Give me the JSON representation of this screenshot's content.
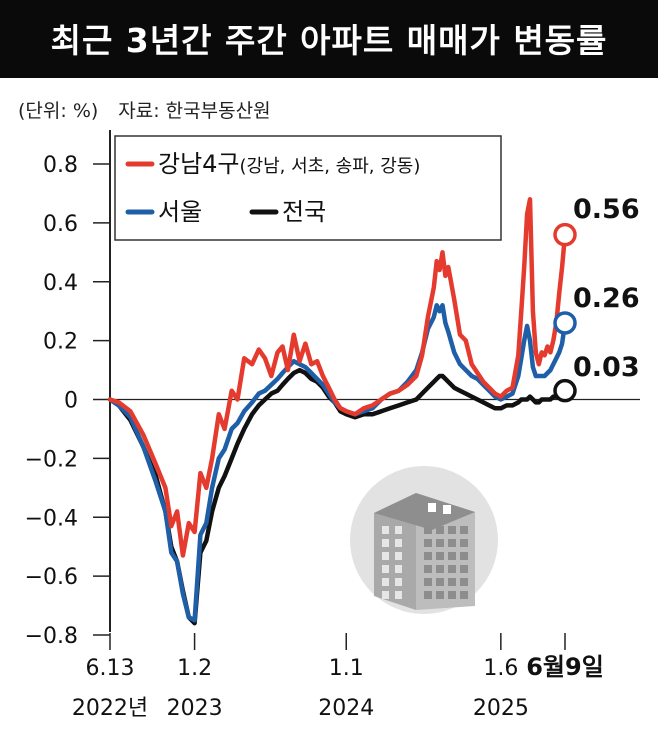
{
  "title": "최근 3년간 주간 아파트 매매가 변동률",
  "unit_label": "(단위: %)",
  "source_label": "자료: 한국부동산원",
  "colors": {
    "gangnam": "#e43b2e",
    "seoul": "#1f5fa8",
    "national": "#111111"
  },
  "chart_data": {
    "type": "line",
    "title": "최근 3년간 주간 아파트 매매가 변동률",
    "ylabel": "(단위: %)",
    "ylim": [
      -0.8,
      0.8
    ],
    "yticks": [
      0.8,
      0.6,
      0.4,
      0.2,
      0,
      -0.2,
      -0.4,
      -0.6,
      -0.8
    ],
    "ytick_labels": [
      "0.8",
      "0.6",
      "0.4",
      "0.2",
      "0",
      "−0.2",
      "−0.4",
      "−0.6",
      "−0.8"
    ],
    "xlim": [
      "2022-06-13",
      "2025-06-09"
    ],
    "xticks": [
      {
        "date": "2022-06-13",
        "label": "6.13",
        "year": "2022년"
      },
      {
        "date": "2023-01-02",
        "label": "1.2",
        "year": "2023"
      },
      {
        "date": "2024-01-01",
        "label": "1.1",
        "year": "2024"
      },
      {
        "date": "2025-01-06",
        "label": "1.6",
        "year": "2025"
      },
      {
        "date": "2025-06-09",
        "label": "6월9일",
        "year": ""
      }
    ],
    "legend_position": "top-left",
    "series": [
      {
        "key": "gangnam",
        "name": "강남4구",
        "name_suffix": "(강남, 서초, 송파, 강동)",
        "end_label": "0.56",
        "points": [
          [
            "2022-06-13",
            0.0
          ],
          [
            "2022-07-04",
            -0.01
          ],
          [
            "2022-08-01",
            -0.04
          ],
          [
            "2022-09-01",
            -0.12
          ],
          [
            "2022-10-01",
            -0.22
          ],
          [
            "2022-10-24",
            -0.3
          ],
          [
            "2022-11-07",
            -0.43
          ],
          [
            "2022-11-21",
            -0.38
          ],
          [
            "2022-12-05",
            -0.53
          ],
          [
            "2022-12-19",
            -0.42
          ],
          [
            "2023-01-02",
            -0.45
          ],
          [
            "2023-01-16",
            -0.25
          ],
          [
            "2023-01-30",
            -0.3
          ],
          [
            "2023-02-13",
            -0.2
          ],
          [
            "2023-03-01",
            -0.05
          ],
          [
            "2023-03-15",
            -0.1
          ],
          [
            "2023-04-01",
            0.03
          ],
          [
            "2023-04-15",
            0.0
          ],
          [
            "2023-05-01",
            0.14
          ],
          [
            "2023-05-20",
            0.12
          ],
          [
            "2023-06-05",
            0.17
          ],
          [
            "2023-06-20",
            0.14
          ],
          [
            "2023-07-05",
            0.08
          ],
          [
            "2023-07-20",
            0.16
          ],
          [
            "2023-08-01",
            0.18
          ],
          [
            "2023-08-14",
            0.1
          ],
          [
            "2023-08-28",
            0.22
          ],
          [
            "2023-09-11",
            0.13
          ],
          [
            "2023-09-25",
            0.19
          ],
          [
            "2023-10-09",
            0.12
          ],
          [
            "2023-10-23",
            0.13
          ],
          [
            "2023-11-06",
            0.08
          ],
          [
            "2023-11-20",
            0.04
          ],
          [
            "2023-12-04",
            0.0
          ],
          [
            "2023-12-18",
            -0.03
          ],
          [
            "2024-01-01",
            -0.04
          ],
          [
            "2024-01-22",
            -0.05
          ],
          [
            "2024-02-12",
            -0.03
          ],
          [
            "2024-03-04",
            -0.02
          ],
          [
            "2024-03-25",
            0.0
          ],
          [
            "2024-04-15",
            0.02
          ],
          [
            "2024-05-06",
            0.03
          ],
          [
            "2024-05-27",
            0.05
          ],
          [
            "2024-06-17",
            0.08
          ],
          [
            "2024-07-01",
            0.15
          ],
          [
            "2024-07-15",
            0.28
          ],
          [
            "2024-07-29",
            0.38
          ],
          [
            "2024-08-05",
            0.47
          ],
          [
            "2024-08-12",
            0.44
          ],
          [
            "2024-08-19",
            0.5
          ],
          [
            "2024-08-26",
            0.42
          ],
          [
            "2024-09-02",
            0.45
          ],
          [
            "2024-09-16",
            0.34
          ],
          [
            "2024-09-30",
            0.22
          ],
          [
            "2024-10-14",
            0.2
          ],
          [
            "2024-10-28",
            0.12
          ],
          [
            "2024-11-11",
            0.09
          ],
          [
            "2024-11-25",
            0.06
          ],
          [
            "2024-12-09",
            0.04
          ],
          [
            "2024-12-23",
            0.02
          ],
          [
            "2025-01-06",
            0.01
          ],
          [
            "2025-01-20",
            0.03
          ],
          [
            "2025-02-03",
            0.04
          ],
          [
            "2025-02-17",
            0.15
          ],
          [
            "2025-02-24",
            0.3
          ],
          [
            "2025-03-03",
            0.45
          ],
          [
            "2025-03-10",
            0.63
          ],
          [
            "2025-03-17",
            0.68
          ],
          [
            "2025-03-24",
            0.3
          ],
          [
            "2025-03-31",
            0.16
          ],
          [
            "2025-04-07",
            0.12
          ],
          [
            "2025-04-14",
            0.16
          ],
          [
            "2025-04-21",
            0.15
          ],
          [
            "2025-04-28",
            0.18
          ],
          [
            "2025-05-05",
            0.16
          ],
          [
            "2025-05-12",
            0.2
          ],
          [
            "2025-05-19",
            0.26
          ],
          [
            "2025-05-26",
            0.36
          ],
          [
            "2025-06-02",
            0.45
          ],
          [
            "2025-06-09",
            0.56
          ]
        ]
      },
      {
        "key": "seoul",
        "name": "서울",
        "end_label": "0.26",
        "points": [
          [
            "2022-06-13",
            0.0
          ],
          [
            "2022-07-04",
            -0.02
          ],
          [
            "2022-08-01",
            -0.06
          ],
          [
            "2022-09-01",
            -0.16
          ],
          [
            "2022-10-01",
            -0.28
          ],
          [
            "2022-10-24",
            -0.38
          ],
          [
            "2022-11-07",
            -0.52
          ],
          [
            "2022-11-21",
            -0.55
          ],
          [
            "2022-12-05",
            -0.66
          ],
          [
            "2022-12-19",
            -0.74
          ],
          [
            "2023-01-02",
            -0.75
          ],
          [
            "2023-01-16",
            -0.46
          ],
          [
            "2023-01-30",
            -0.42
          ],
          [
            "2023-02-13",
            -0.3
          ],
          [
            "2023-03-01",
            -0.2
          ],
          [
            "2023-03-15",
            -0.17
          ],
          [
            "2023-04-01",
            -0.1
          ],
          [
            "2023-04-15",
            -0.08
          ],
          [
            "2023-05-01",
            -0.04
          ],
          [
            "2023-05-20",
            -0.01
          ],
          [
            "2023-06-05",
            0.02
          ],
          [
            "2023-06-20",
            0.03
          ],
          [
            "2023-07-05",
            0.05
          ],
          [
            "2023-07-20",
            0.07
          ],
          [
            "2023-08-01",
            0.09
          ],
          [
            "2023-08-14",
            0.11
          ],
          [
            "2023-08-28",
            0.13
          ],
          [
            "2023-09-11",
            0.12
          ],
          [
            "2023-09-25",
            0.11
          ],
          [
            "2023-10-09",
            0.09
          ],
          [
            "2023-10-23",
            0.07
          ],
          [
            "2023-11-06",
            0.05
          ],
          [
            "2023-11-20",
            0.02
          ],
          [
            "2023-12-04",
            -0.01
          ],
          [
            "2023-12-18",
            -0.03
          ],
          [
            "2024-01-01",
            -0.04
          ],
          [
            "2024-01-22",
            -0.05
          ],
          [
            "2024-02-12",
            -0.04
          ],
          [
            "2024-03-04",
            -0.03
          ],
          [
            "2024-03-25",
            0.0
          ],
          [
            "2024-04-15",
            0.02
          ],
          [
            "2024-05-06",
            0.03
          ],
          [
            "2024-05-27",
            0.06
          ],
          [
            "2024-06-17",
            0.1
          ],
          [
            "2024-07-01",
            0.16
          ],
          [
            "2024-07-15",
            0.24
          ],
          [
            "2024-07-29",
            0.28
          ],
          [
            "2024-08-05",
            0.32
          ],
          [
            "2024-08-12",
            0.3
          ],
          [
            "2024-08-19",
            0.32
          ],
          [
            "2024-08-26",
            0.26
          ],
          [
            "2024-09-02",
            0.23
          ],
          [
            "2024-09-16",
            0.16
          ],
          [
            "2024-09-30",
            0.12
          ],
          [
            "2024-10-14",
            0.1
          ],
          [
            "2024-10-28",
            0.08
          ],
          [
            "2024-11-11",
            0.07
          ],
          [
            "2024-11-25",
            0.05
          ],
          [
            "2024-12-09",
            0.03
          ],
          [
            "2024-12-23",
            0.01
          ],
          [
            "2025-01-06",
            0.0
          ],
          [
            "2025-01-20",
            0.01
          ],
          [
            "2025-02-03",
            0.02
          ],
          [
            "2025-02-17",
            0.08
          ],
          [
            "2025-02-24",
            0.14
          ],
          [
            "2025-03-03",
            0.2
          ],
          [
            "2025-03-10",
            0.25
          ],
          [
            "2025-03-17",
            0.2
          ],
          [
            "2025-03-24",
            0.11
          ],
          [
            "2025-03-31",
            0.08
          ],
          [
            "2025-04-07",
            0.08
          ],
          [
            "2025-04-14",
            0.08
          ],
          [
            "2025-04-21",
            0.08
          ],
          [
            "2025-04-28",
            0.09
          ],
          [
            "2025-05-05",
            0.1
          ],
          [
            "2025-05-12",
            0.12
          ],
          [
            "2025-05-19",
            0.14
          ],
          [
            "2025-05-26",
            0.16
          ],
          [
            "2025-06-02",
            0.19
          ],
          [
            "2025-06-09",
            0.26
          ]
        ]
      },
      {
        "key": "national",
        "name": "전국",
        "end_label": "0.03",
        "points": [
          [
            "2022-06-13",
            0.0
          ],
          [
            "2022-07-04",
            -0.02
          ],
          [
            "2022-08-01",
            -0.07
          ],
          [
            "2022-09-01",
            -0.16
          ],
          [
            "2022-10-01",
            -0.26
          ],
          [
            "2022-10-24",
            -0.38
          ],
          [
            "2022-11-07",
            -0.5
          ],
          [
            "2022-11-21",
            -0.55
          ],
          [
            "2022-12-05",
            -0.65
          ],
          [
            "2022-12-19",
            -0.74
          ],
          [
            "2023-01-02",
            -0.76
          ],
          [
            "2023-01-16",
            -0.52
          ],
          [
            "2023-01-30",
            -0.48
          ],
          [
            "2023-02-13",
            -0.38
          ],
          [
            "2023-03-01",
            -0.3
          ],
          [
            "2023-03-15",
            -0.26
          ],
          [
            "2023-04-01",
            -0.2
          ],
          [
            "2023-04-15",
            -0.15
          ],
          [
            "2023-05-01",
            -0.1
          ],
          [
            "2023-05-20",
            -0.05
          ],
          [
            "2023-06-05",
            -0.02
          ],
          [
            "2023-06-20",
            0.0
          ],
          [
            "2023-07-05",
            0.02
          ],
          [
            "2023-07-20",
            0.03
          ],
          [
            "2023-08-01",
            0.05
          ],
          [
            "2023-08-14",
            0.07
          ],
          [
            "2023-08-28",
            0.09
          ],
          [
            "2023-09-11",
            0.1
          ],
          [
            "2023-09-25",
            0.09
          ],
          [
            "2023-10-09",
            0.07
          ],
          [
            "2023-10-23",
            0.06
          ],
          [
            "2023-11-06",
            0.04
          ],
          [
            "2023-11-20",
            0.01
          ],
          [
            "2023-12-04",
            -0.01
          ],
          [
            "2023-12-18",
            -0.04
          ],
          [
            "2024-01-01",
            -0.05
          ],
          [
            "2024-01-22",
            -0.06
          ],
          [
            "2024-02-12",
            -0.05
          ],
          [
            "2024-03-04",
            -0.05
          ],
          [
            "2024-03-25",
            -0.04
          ],
          [
            "2024-04-15",
            -0.03
          ],
          [
            "2024-05-06",
            -0.02
          ],
          [
            "2024-05-27",
            -0.01
          ],
          [
            "2024-06-17",
            0.0
          ],
          [
            "2024-07-01",
            0.02
          ],
          [
            "2024-07-15",
            0.04
          ],
          [
            "2024-07-29",
            0.06
          ],
          [
            "2024-08-05",
            0.07
          ],
          [
            "2024-08-12",
            0.08
          ],
          [
            "2024-08-19",
            0.08
          ],
          [
            "2024-08-26",
            0.07
          ],
          [
            "2024-09-02",
            0.06
          ],
          [
            "2024-09-16",
            0.04
          ],
          [
            "2024-09-30",
            0.03
          ],
          [
            "2024-10-14",
            0.02
          ],
          [
            "2024-10-28",
            0.01
          ],
          [
            "2024-11-11",
            0.0
          ],
          [
            "2024-11-25",
            -0.01
          ],
          [
            "2024-12-09",
            -0.02
          ],
          [
            "2024-12-23",
            -0.03
          ],
          [
            "2025-01-06",
            -0.03
          ],
          [
            "2025-01-20",
            -0.02
          ],
          [
            "2025-02-03",
            -0.02
          ],
          [
            "2025-02-17",
            -0.01
          ],
          [
            "2025-02-24",
            0.0
          ],
          [
            "2025-03-03",
            0.0
          ],
          [
            "2025-03-10",
            0.0
          ],
          [
            "2025-03-17",
            0.01
          ],
          [
            "2025-03-24",
            0.0
          ],
          [
            "2025-03-31",
            -0.01
          ],
          [
            "2025-04-07",
            -0.01
          ],
          [
            "2025-04-14",
            0.0
          ],
          [
            "2025-04-21",
            0.0
          ],
          [
            "2025-04-28",
            0.0
          ],
          [
            "2025-05-05",
            0.0
          ],
          [
            "2025-05-12",
            0.01
          ],
          [
            "2025-05-19",
            0.01
          ],
          [
            "2025-05-26",
            0.02
          ],
          [
            "2025-06-02",
            0.02
          ],
          [
            "2025-06-09",
            0.03
          ]
        ]
      }
    ]
  }
}
